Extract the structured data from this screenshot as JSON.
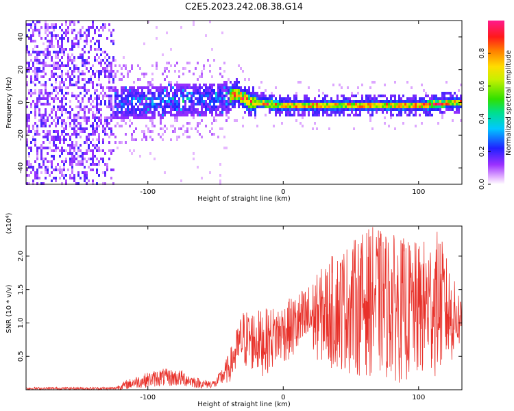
{
  "title": "C2E5.2023.242.08.38.G14",
  "colorbar": {
    "label": "Normalized spectral amplitude",
    "range": [
      0,
      1
    ],
    "ticks": [
      "0.0",
      "0.2",
      "0.4",
      "0.6",
      "0.8"
    ],
    "tick_values": [
      0.0,
      0.2,
      0.4,
      0.6,
      0.8
    ],
    "colormap": "rainbow (violet → red → magenta)"
  },
  "chart_data": [
    {
      "type": "heatmap",
      "xlabel": "Height of straight line (km)",
      "ylabel": "Frequency (Hz)",
      "xlim": [
        -190,
        132
      ],
      "ylim": [
        -50,
        50
      ],
      "x_ticks": [
        "-100",
        "0",
        "100"
      ],
      "x_tick_values": [
        -100,
        0,
        100
      ],
      "y_ticks": [
        "-40",
        "-20",
        "0",
        "20",
        "40"
      ],
      "y_tick_values": [
        -40,
        -20,
        0,
        20,
        40
      ],
      "description_regions": [
        {
          "x_range": [
            -190,
            -120
          ],
          "pattern": "broadband noise over full frequency range",
          "amplitude": "low-medium"
        },
        {
          "x_range": [
            -125,
            -40
          ],
          "pattern": "band centered near 0 Hz, spread ±10 Hz",
          "amplitude": "medium"
        },
        {
          "x_range": [
            -40,
            132
          ],
          "pattern": "narrow band near -1 Hz, ±3 Hz",
          "amplitude": "high"
        }
      ],
      "band_center": [
        {
          "x": -125,
          "y": 0
        },
        {
          "x": -100,
          "y": 1
        },
        {
          "x": -75,
          "y": 2
        },
        {
          "x": -60,
          "y": 3
        },
        {
          "x": -45,
          "y": 3
        },
        {
          "x": -35,
          "y": 6
        },
        {
          "x": -25,
          "y": 1
        },
        {
          "x": 0,
          "y": -1
        },
        {
          "x": 50,
          "y": -1
        },
        {
          "x": 100,
          "y": -1
        },
        {
          "x": 132,
          "y": 1
        }
      ]
    },
    {
      "type": "line",
      "xlabel": "Height of straight line (km)",
      "ylabel": "SNR (10 * v/v)",
      "yscale_note": "(x10",
      "yscale_exp": "4",
      "yscale_close": ")",
      "xlim": [
        -190,
        132
      ],
      "ylim": [
        0,
        2.45
      ],
      "x_ticks": [
        "-100",
        "0",
        "100"
      ],
      "x_tick_values": [
        -100,
        0,
        100
      ],
      "y_ticks": [
        "0.5",
        "1.0",
        "1.5",
        "2.0"
      ],
      "y_tick_values": [
        0.5,
        1.0,
        1.5,
        2.0
      ],
      "series": [
        {
          "color": "#e8312a",
          "envelope": [
            {
              "x": -190,
              "y_min": 0.0,
              "y_max": 0.04
            },
            {
              "x": -125,
              "y_min": 0.0,
              "y_max": 0.04
            },
            {
              "x": -120,
              "y_min": 0.0,
              "y_max": 0.1
            },
            {
              "x": -110,
              "y_min": 0.02,
              "y_max": 0.2
            },
            {
              "x": -90,
              "y_min": 0.05,
              "y_max": 0.32
            },
            {
              "x": -75,
              "y_min": 0.05,
              "y_max": 0.3
            },
            {
              "x": -60,
              "y_min": 0.02,
              "y_max": 0.15
            },
            {
              "x": -50,
              "y_min": 0.03,
              "y_max": 0.15
            },
            {
              "x": -40,
              "y_min": 0.1,
              "y_max": 0.55
            },
            {
              "x": -30,
              "y_min": 0.3,
              "y_max": 1.2
            },
            {
              "x": -15,
              "y_min": 0.2,
              "y_max": 1.2
            },
            {
              "x": 0,
              "y_min": 0.4,
              "y_max": 1.3
            },
            {
              "x": 20,
              "y_min": 0.5,
              "y_max": 1.6
            },
            {
              "x": 35,
              "y_min": 0.3,
              "y_max": 2.0
            },
            {
              "x": 55,
              "y_min": 0.2,
              "y_max": 2.3
            },
            {
              "x": 65,
              "y_min": 0.2,
              "y_max": 2.45
            },
            {
              "x": 85,
              "y_min": 0.1,
              "y_max": 2.3
            },
            {
              "x": 100,
              "y_min": 0.1,
              "y_max": 2.2
            },
            {
              "x": 115,
              "y_min": 0.2,
              "y_max": 2.4
            },
            {
              "x": 125,
              "y_min": 0.4,
              "y_max": 1.7
            },
            {
              "x": 132,
              "y_min": 0.7,
              "y_max": 1.4
            }
          ]
        }
      ]
    }
  ]
}
